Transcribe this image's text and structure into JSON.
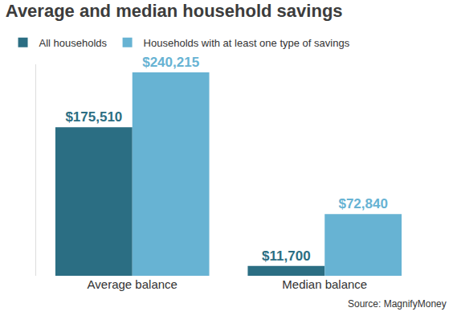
{
  "chart_data": {
    "type": "bar",
    "title": "Average and median household savings",
    "source": "Source: MagnifyMoney",
    "categories": [
      "Average balance",
      "Median balance"
    ],
    "series": [
      {
        "name": "All households",
        "color": "#2b6e83",
        "values": [
          175510,
          11700
        ],
        "value_labels": [
          "$175,510",
          "$11,700"
        ]
      },
      {
        "name": "Households with at least one type of savings",
        "color": "#67b3d3",
        "values": [
          240215,
          72840
        ],
        "value_labels": [
          "$240,215",
          "$72,840"
        ]
      }
    ],
    "ylim": [
      0,
      250000
    ],
    "grid": false,
    "legend": "top left",
    "data_labels": true,
    "tick_labels": "x"
  }
}
